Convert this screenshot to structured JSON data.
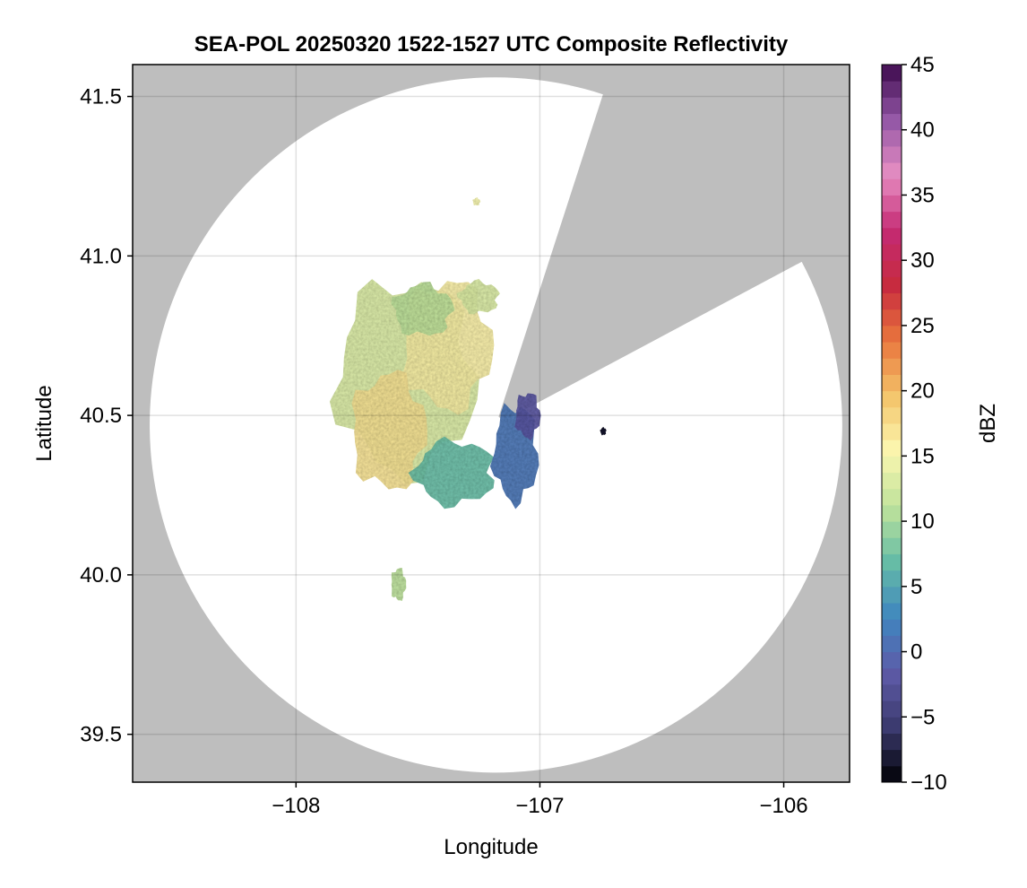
{
  "chart_data": {
    "type": "heatmap",
    "title": "SEA-POL 20250320 1522-1527 UTC Composite Reflectivity",
    "xlabel": "Longitude",
    "ylabel": "Latitude",
    "xlim": [
      -108.67,
      -105.73
    ],
    "ylim": [
      39.35,
      41.6
    ],
    "x_ticks": [
      -108,
      -107,
      -106
    ],
    "x_tick_labels": [
      "−108",
      "−107",
      "−106"
    ],
    "y_ticks": [
      39.5,
      40.0,
      40.5,
      41.0,
      41.5
    ],
    "y_tick_labels": [
      "39.5",
      "40.0",
      "40.5",
      "41.0",
      "41.5"
    ],
    "grid": true,
    "background_color": "#bebebe",
    "radar": {
      "center": [
        -107.18,
        40.47
      ],
      "range_radius_lon": 1.42,
      "range_radius_lat": 1.09,
      "blocked_sectors_deg_cw_from_north": [
        [
          18,
          62
        ]
      ]
    },
    "echo_regions": [
      {
        "lon": -107.55,
        "lat": 40.62,
        "rx": 0.28,
        "ry": 0.3,
        "dbz": 13
      },
      {
        "lon": -107.38,
        "lat": 40.72,
        "rx": 0.18,
        "ry": 0.2,
        "dbz": 16
      },
      {
        "lon": -107.62,
        "lat": 40.45,
        "rx": 0.15,
        "ry": 0.18,
        "dbz": 17
      },
      {
        "lon": -107.48,
        "lat": 40.83,
        "rx": 0.12,
        "ry": 0.08,
        "dbz": 11
      },
      {
        "lon": -107.25,
        "lat": 40.87,
        "rx": 0.08,
        "ry": 0.05,
        "dbz": 13
      },
      {
        "lon": -107.35,
        "lat": 40.32,
        "rx": 0.16,
        "ry": 0.1,
        "dbz": 7
      },
      {
        "lon": -107.1,
        "lat": 40.38,
        "rx": 0.09,
        "ry": 0.15,
        "dbz": 1
      },
      {
        "lon": -107.05,
        "lat": 40.5,
        "rx": 0.05,
        "ry": 0.07,
        "dbz": -2
      },
      {
        "lon": -107.58,
        "lat": 39.97,
        "rx": 0.03,
        "ry": 0.05,
        "dbz": 11
      },
      {
        "lon": -107.26,
        "lat": 41.17,
        "rx": 0.015,
        "ry": 0.012,
        "dbz": 15
      },
      {
        "lon": -106.74,
        "lat": 40.45,
        "rx": 0.012,
        "ry": 0.012,
        "dbz": -9
      }
    ],
    "colorbar": {
      "label": "dBZ",
      "min": -10,
      "max": 45,
      "ticks": [
        -10,
        -5,
        0,
        5,
        10,
        15,
        20,
        25,
        30,
        35,
        40,
        45
      ],
      "tick_labels": [
        "−10",
        "−5",
        "0",
        "5",
        "10",
        "15",
        "20",
        "25",
        "30",
        "35",
        "40",
        "45"
      ],
      "colors": [
        "#000004",
        "#3b3a6e",
        "#5e5ba8",
        "#3f86bf",
        "#66bda6",
        "#c0e39b",
        "#fbf7b0",
        "#f4c46a",
        "#e9763d",
        "#c72b3e",
        "#c42a73",
        "#e78ec2",
        "#9357a6",
        "#3d0a4d"
      ]
    }
  }
}
